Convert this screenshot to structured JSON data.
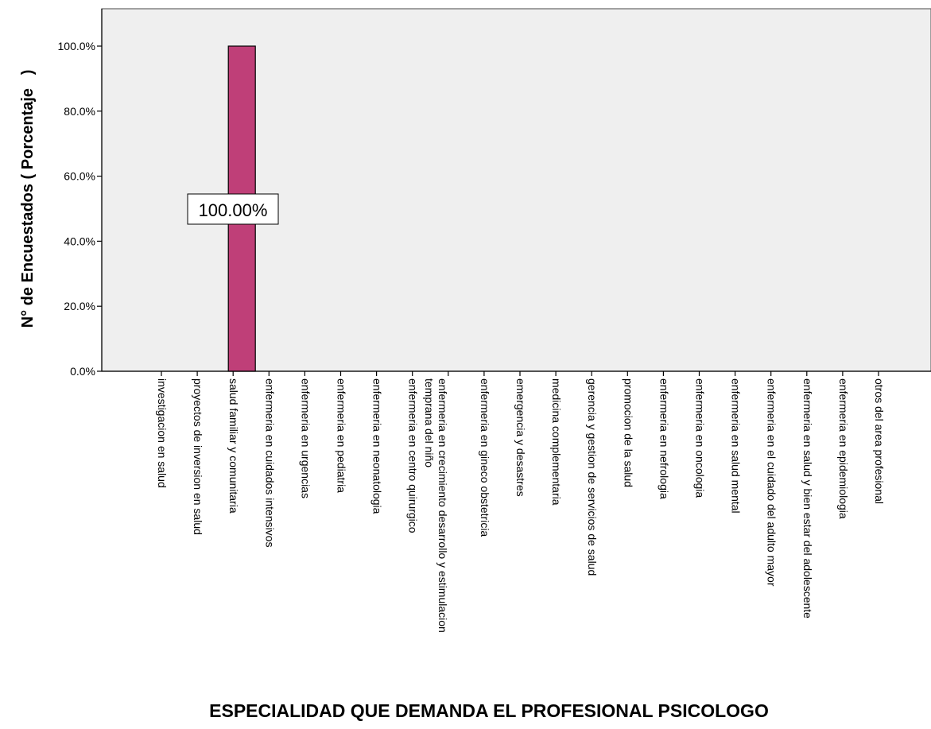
{
  "chart_data": {
    "type": "bar",
    "categories": [
      "investigacion en salud",
      "proyectos de inversion en salud",
      "salud familiar y comunitaria",
      "enfermeria en cuidados intensivos",
      "enfermeria en urgencias",
      "enfermeria en pediatria",
      "enfermeria en neonatologia",
      "enfermeria en centro quirurgico",
      "enfermeria en crecimiento desarrollo y estimulacion temprana del niño",
      "enfermeria en gineco obstetricia",
      "emergencia y desastres",
      "medicina complementaria",
      "gerencia y gestion de servicios de salud",
      "promocion de la salud",
      "enfermeria en nefrologia",
      "enfermeria en oncologia",
      "enfermeria en salud mental",
      "enfermeria en el cuidado del adulto mayor",
      "enfermeria en salud y bien estar del adolescente",
      "enfermeria en epidemiologia",
      "otros del area profesional"
    ],
    "values": [
      0,
      0,
      100,
      0,
      0,
      0,
      0,
      0,
      0,
      0,
      0,
      0,
      0,
      0,
      0,
      0,
      0,
      0,
      0,
      0,
      0
    ],
    "data_labels": [
      "",
      "",
      "100.00%",
      "",
      "",
      "",
      "",
      "",
      "",
      "",
      "",
      "",
      "",
      "",
      "",
      "",
      "",
      "",
      "",
      "",
      ""
    ],
    "xlabel": "ESPECIALIDAD QUE DEMANDA EL PROFESIONAL PSICOLOGO",
    "ylabel": "N° de Encuestados ( Porcentaje   )",
    "ylim": [
      0,
      100
    ],
    "yticks": [
      0,
      20,
      40,
      60,
      80,
      100
    ],
    "ytick_labels": [
      "0.0%",
      "20.0%",
      "40.0%",
      "60.0%",
      "80.0%",
      "100.0%"
    ],
    "grid": false,
    "colors": {
      "bar": "#bf3f78",
      "plot_background": "#efefef",
      "axis": "#000000"
    }
  }
}
